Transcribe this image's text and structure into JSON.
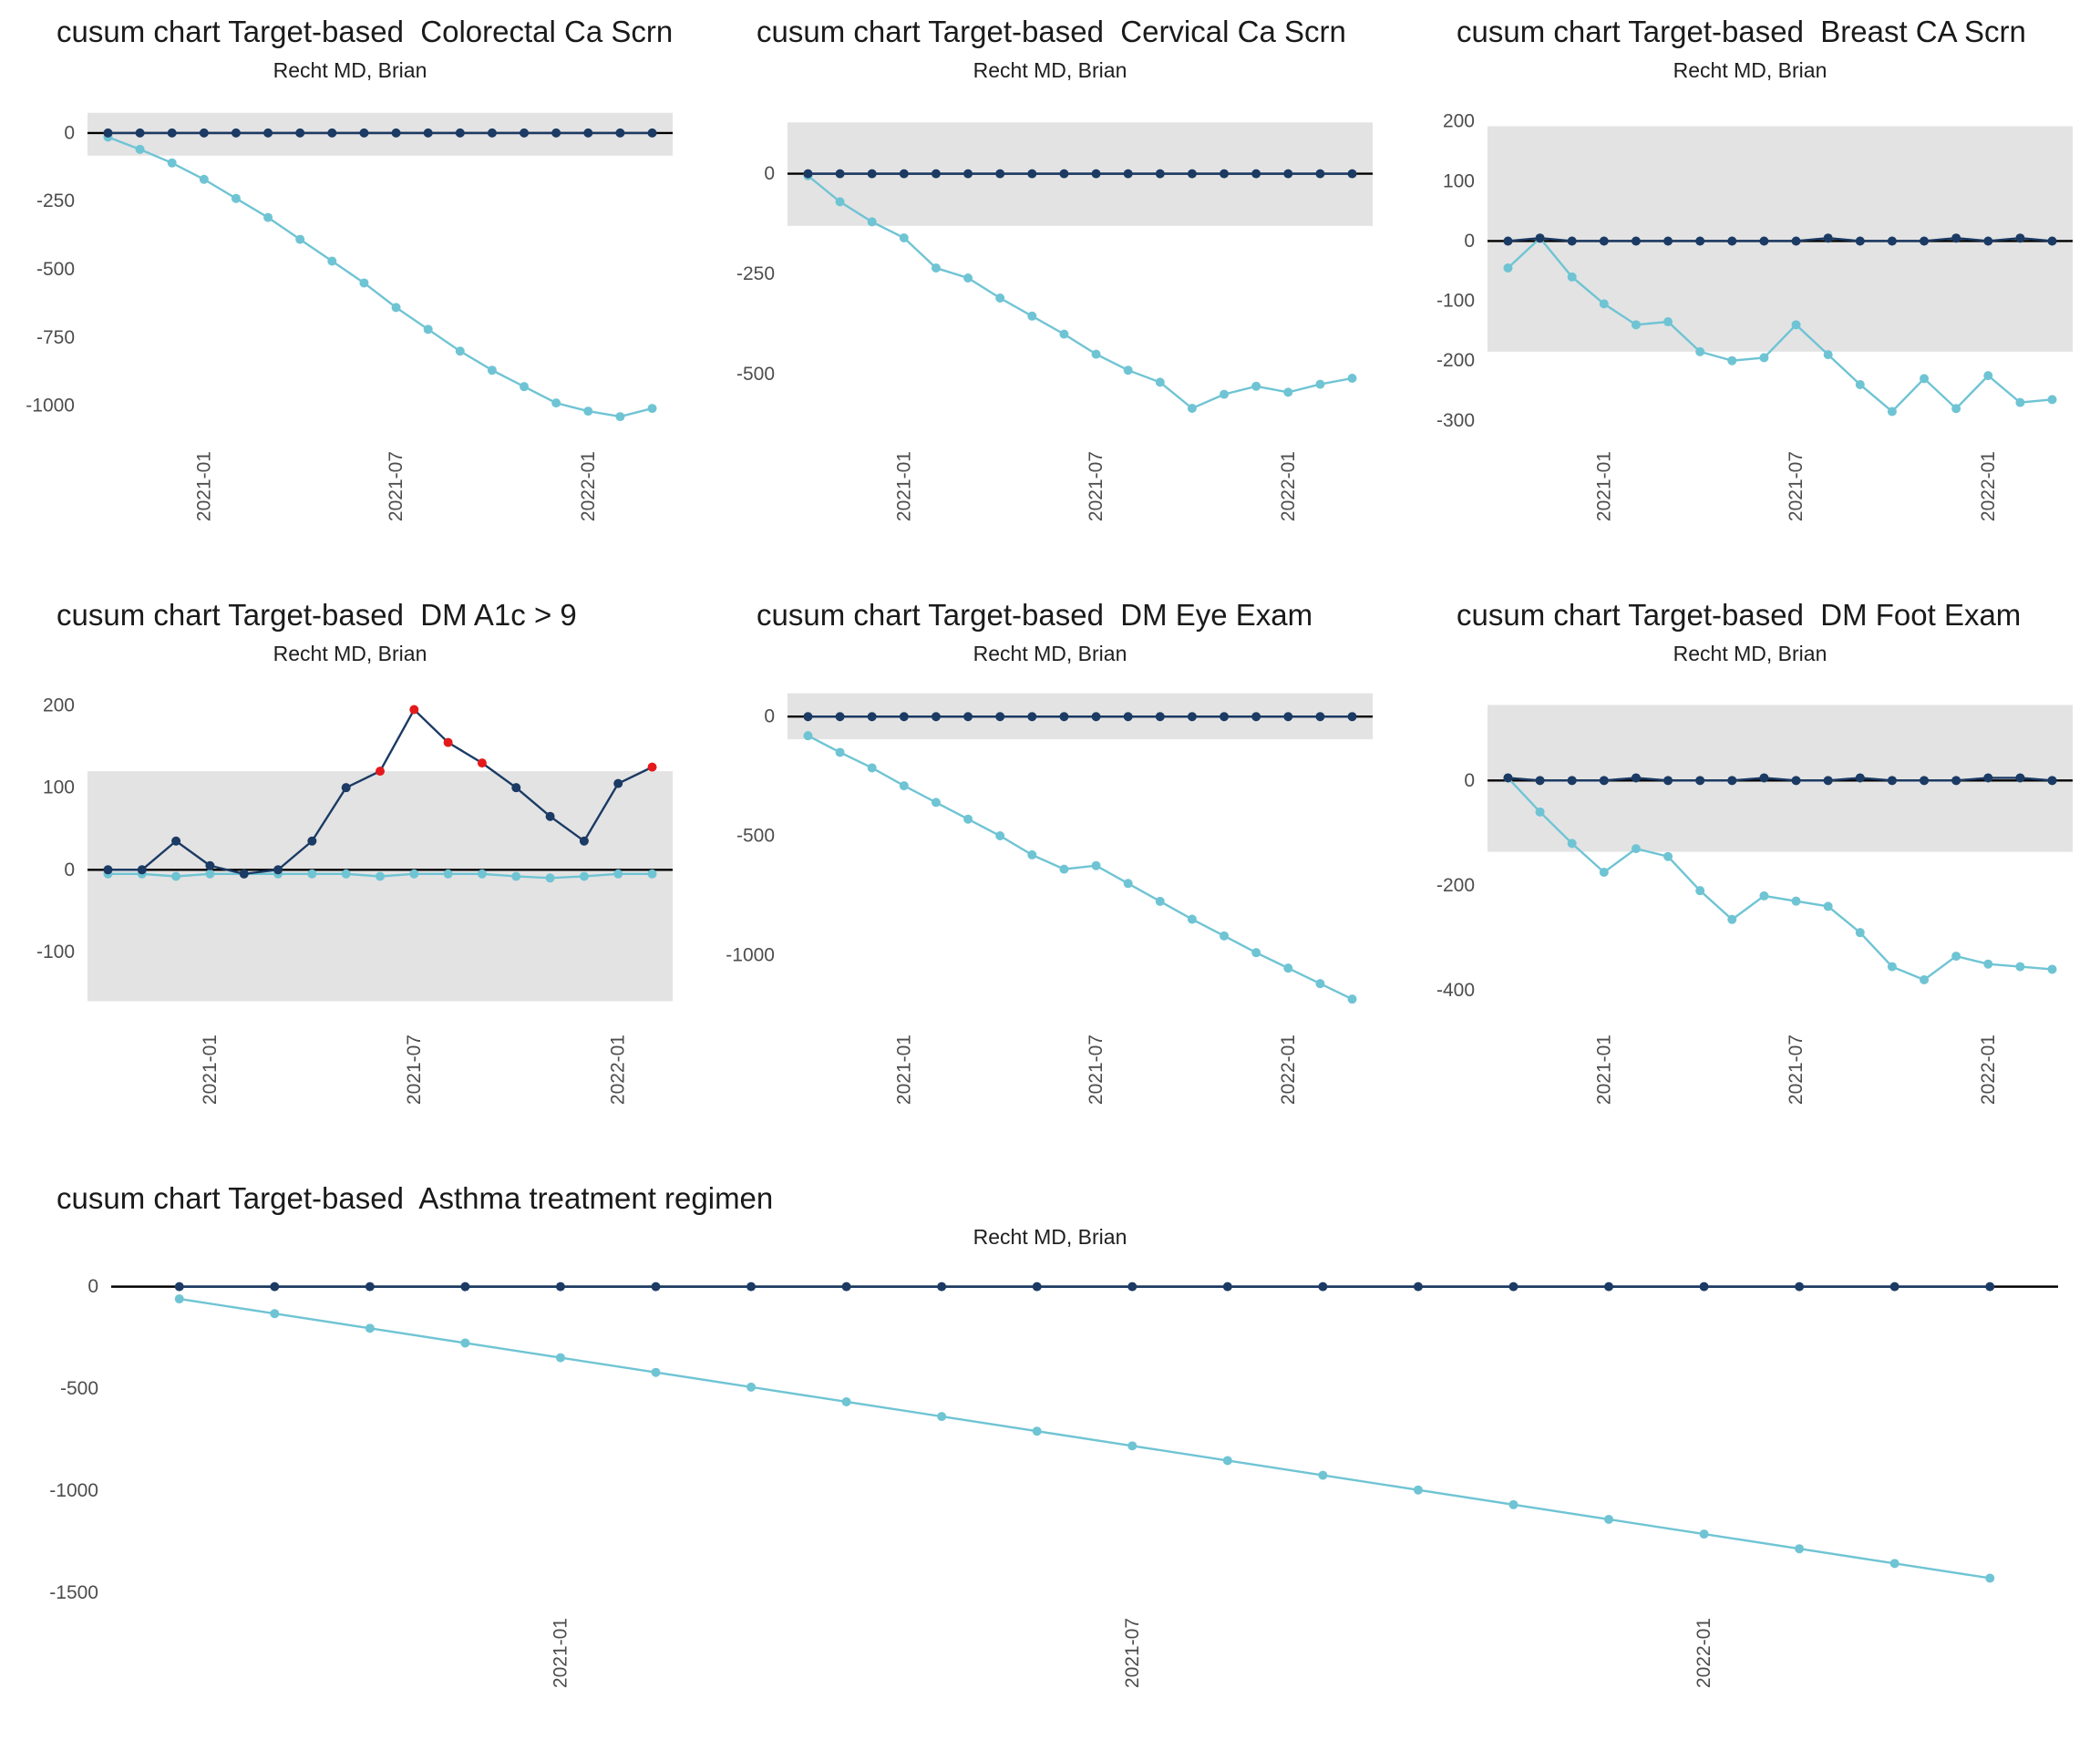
{
  "colors": {
    "teal": "#6fc4d4",
    "navy": "#1b3a64",
    "red": "#e31a1c",
    "band": "#e3e3e3",
    "zero_line": "#000000",
    "tick_label": "#4d4d4d",
    "title": "#1a1a1a"
  },
  "chart_data": [
    {
      "type": "line",
      "title": "cusum chart Target-based  Colorectal Ca Scrn",
      "subtitle": "Recht MD, Brian",
      "ylim": [
        -1120,
        130
      ],
      "yticks": [
        0,
        -250,
        -500,
        -750,
        -1000
      ],
      "band": [
        -83,
        74
      ],
      "xticks": [
        {
          "i": 3,
          "label": "2021-01"
        },
        {
          "i": 9,
          "label": "2021-07"
        },
        {
          "i": 15,
          "label": "2022-01"
        }
      ],
      "series": [
        {
          "id": "observed-cusum",
          "color_key": "teal",
          "values": [
            -15,
            -60,
            -110,
            -170,
            -240,
            -310,
            -390,
            -470,
            -550,
            -640,
            -720,
            -800,
            -870,
            -930,
            -990,
            -1020,
            -1040,
            -1010
          ]
        },
        {
          "id": "target-cusum",
          "color_key": "navy",
          "values": [
            0,
            0,
            0,
            0,
            0,
            0,
            0,
            0,
            0,
            0,
            0,
            0,
            0,
            0,
            0,
            0,
            0,
            0
          ]
        }
      ]
    },
    {
      "type": "line",
      "title": "cusum chart Target-based  Cervical Ca Scrn",
      "subtitle": "Recht MD, Brian",
      "ylim": [
        -660,
        190
      ],
      "yticks": [
        0,
        -250,
        -500
      ],
      "band": [
        -130,
        128
      ],
      "xticks": [
        {
          "i": 3,
          "label": "2021-01"
        },
        {
          "i": 9,
          "label": "2021-07"
        },
        {
          "i": 15,
          "label": "2022-01"
        }
      ],
      "series": [
        {
          "id": "observed-cusum",
          "color_key": "teal",
          "values": [
            -5,
            -70,
            -120,
            -160,
            -235,
            -260,
            -310,
            -355,
            -400,
            -450,
            -490,
            -520,
            -585,
            -550,
            -530,
            -545,
            -525,
            -510
          ]
        },
        {
          "id": "target-cusum",
          "color_key": "navy",
          "values": [
            0,
            0,
            0,
            0,
            0,
            0,
            0,
            0,
            0,
            0,
            0,
            0,
            0,
            0,
            0,
            0,
            0,
            0
          ]
        }
      ]
    },
    {
      "type": "line",
      "title": "cusum chart Target-based  Breast CA Scrn",
      "subtitle": "Recht MD, Brian",
      "ylim": [
        -330,
        240
      ],
      "yticks": [
        200,
        100,
        0,
        -100,
        -200,
        -300
      ],
      "band": [
        -185,
        192
      ],
      "xticks": [
        {
          "i": 3,
          "label": "2021-01"
        },
        {
          "i": 9,
          "label": "2021-07"
        },
        {
          "i": 15,
          "label": "2022-01"
        }
      ],
      "series": [
        {
          "id": "observed-cusum",
          "color_key": "teal",
          "values": [
            -45,
            5,
            -60,
            -105,
            -140,
            -135,
            -185,
            -200,
            -195,
            -140,
            -190,
            -240,
            -285,
            -230,
            -280,
            -225,
            -270,
            -265
          ]
        },
        {
          "id": "target-cusum",
          "color_key": "navy",
          "values": [
            0,
            5,
            0,
            0,
            0,
            0,
            0,
            0,
            0,
            0,
            5,
            0,
            0,
            0,
            5,
            0,
            5,
            0
          ]
        }
      ]
    },
    {
      "type": "line",
      "title": "cusum chart Target-based  DM A1c > 9",
      "subtitle": "Recht MD, Brian",
      "ylim": [
        -185,
        230
      ],
      "yticks": [
        200,
        100,
        0,
        -100
      ],
      "band": [
        -160,
        120
      ],
      "xticks": [
        {
          "i": 3,
          "label": "2021-01"
        },
        {
          "i": 9,
          "label": "2021-07"
        },
        {
          "i": 15,
          "label": "2022-01"
        }
      ],
      "series": [
        {
          "id": "observed-cusum",
          "color_key": "teal",
          "values": [
            -5,
            -5,
            -8,
            -5,
            -5,
            -5,
            -5,
            -5,
            -8,
            -5,
            -5,
            -5,
            -8,
            -10,
            -8,
            -5,
            -5
          ]
        },
        {
          "id": "target-cusum",
          "color_key": "navy",
          "values": [
            0,
            0,
            35,
            5,
            -5,
            0,
            35,
            100,
            120,
            195,
            155,
            130,
            100,
            65,
            35,
            105,
            125
          ],
          "point_colors": {
            "8": "red",
            "9": "red",
            "10": "red",
            "11": "red",
            "16": "red"
          }
        }
      ]
    },
    {
      "type": "line",
      "title": "cusum chart Target-based  DM Eye Exam",
      "subtitle": "Recht MD, Brian",
      "ylim": [
        -1280,
        150
      ],
      "yticks": [
        0,
        -500,
        -1000
      ],
      "band": [
        -95,
        98
      ],
      "xticks": [
        {
          "i": 3,
          "label": "2021-01"
        },
        {
          "i": 9,
          "label": "2021-07"
        },
        {
          "i": 15,
          "label": "2022-01"
        }
      ],
      "series": [
        {
          "id": "observed-cusum",
          "color_key": "teal",
          "values": [
            -80,
            -150,
            -215,
            -290,
            -360,
            -430,
            -500,
            -580,
            -640,
            -625,
            -700,
            -775,
            -850,
            -920,
            -990,
            -1055,
            -1120,
            -1185
          ]
        },
        {
          "id": "target-cusum",
          "color_key": "navy",
          "values": [
            0,
            0,
            0,
            0,
            0,
            0,
            0,
            0,
            0,
            0,
            0,
            0,
            0,
            0,
            0,
            0,
            0,
            0
          ]
        }
      ]
    },
    {
      "type": "line",
      "title": "cusum chart Target-based  DM Foot Exam",
      "subtitle": "Recht MD, Brian",
      "ylim": [
        -460,
        190
      ],
      "yticks": [
        0,
        -200,
        -400
      ],
      "band": [
        -136,
        144
      ],
      "xticks": [
        {
          "i": 3,
          "label": "2021-01"
        },
        {
          "i": 9,
          "label": "2021-07"
        },
        {
          "i": 15,
          "label": "2022-01"
        }
      ],
      "series": [
        {
          "id": "observed-cusum",
          "color_key": "teal",
          "values": [
            5,
            -60,
            -120,
            -175,
            -130,
            -145,
            -210,
            -265,
            -220,
            -230,
            -240,
            -290,
            -355,
            -380,
            -335,
            -350,
            -355,
            -360
          ]
        },
        {
          "id": "target-cusum",
          "color_key": "navy",
          "values": [
            5,
            0,
            0,
            0,
            5,
            0,
            0,
            0,
            5,
            0,
            0,
            5,
            0,
            0,
            0,
            5,
            5,
            0
          ]
        }
      ]
    },
    {
      "type": "line",
      "title": "cusum chart Target-based  Asthma treatment regimen",
      "subtitle": "Recht MD, Brian",
      "ylim": [
        -1560,
        110
      ],
      "yticks": [
        0,
        -500,
        -1000,
        -1500
      ],
      "band": null,
      "xticks": [
        {
          "i": 4,
          "label": "2021-01"
        },
        {
          "i": 10,
          "label": "2021-07"
        },
        {
          "i": 16,
          "label": "2022-01"
        }
      ],
      "series": [
        {
          "id": "observed-cusum",
          "color_key": "teal",
          "values": [
            -60,
            -132,
            -204,
            -276,
            -348,
            -420,
            -492,
            -564,
            -636,
            -708,
            -780,
            -852,
            -924,
            -996,
            -1068,
            -1140,
            -1212,
            -1284,
            -1356,
            -1428
          ]
        },
        {
          "id": "target-cusum",
          "color_key": "navy",
          "values": [
            0,
            0,
            0,
            0,
            0,
            0,
            0,
            0,
            0,
            0,
            0,
            0,
            0,
            0,
            0,
            0,
            0,
            0,
            0,
            0
          ]
        }
      ]
    }
  ]
}
